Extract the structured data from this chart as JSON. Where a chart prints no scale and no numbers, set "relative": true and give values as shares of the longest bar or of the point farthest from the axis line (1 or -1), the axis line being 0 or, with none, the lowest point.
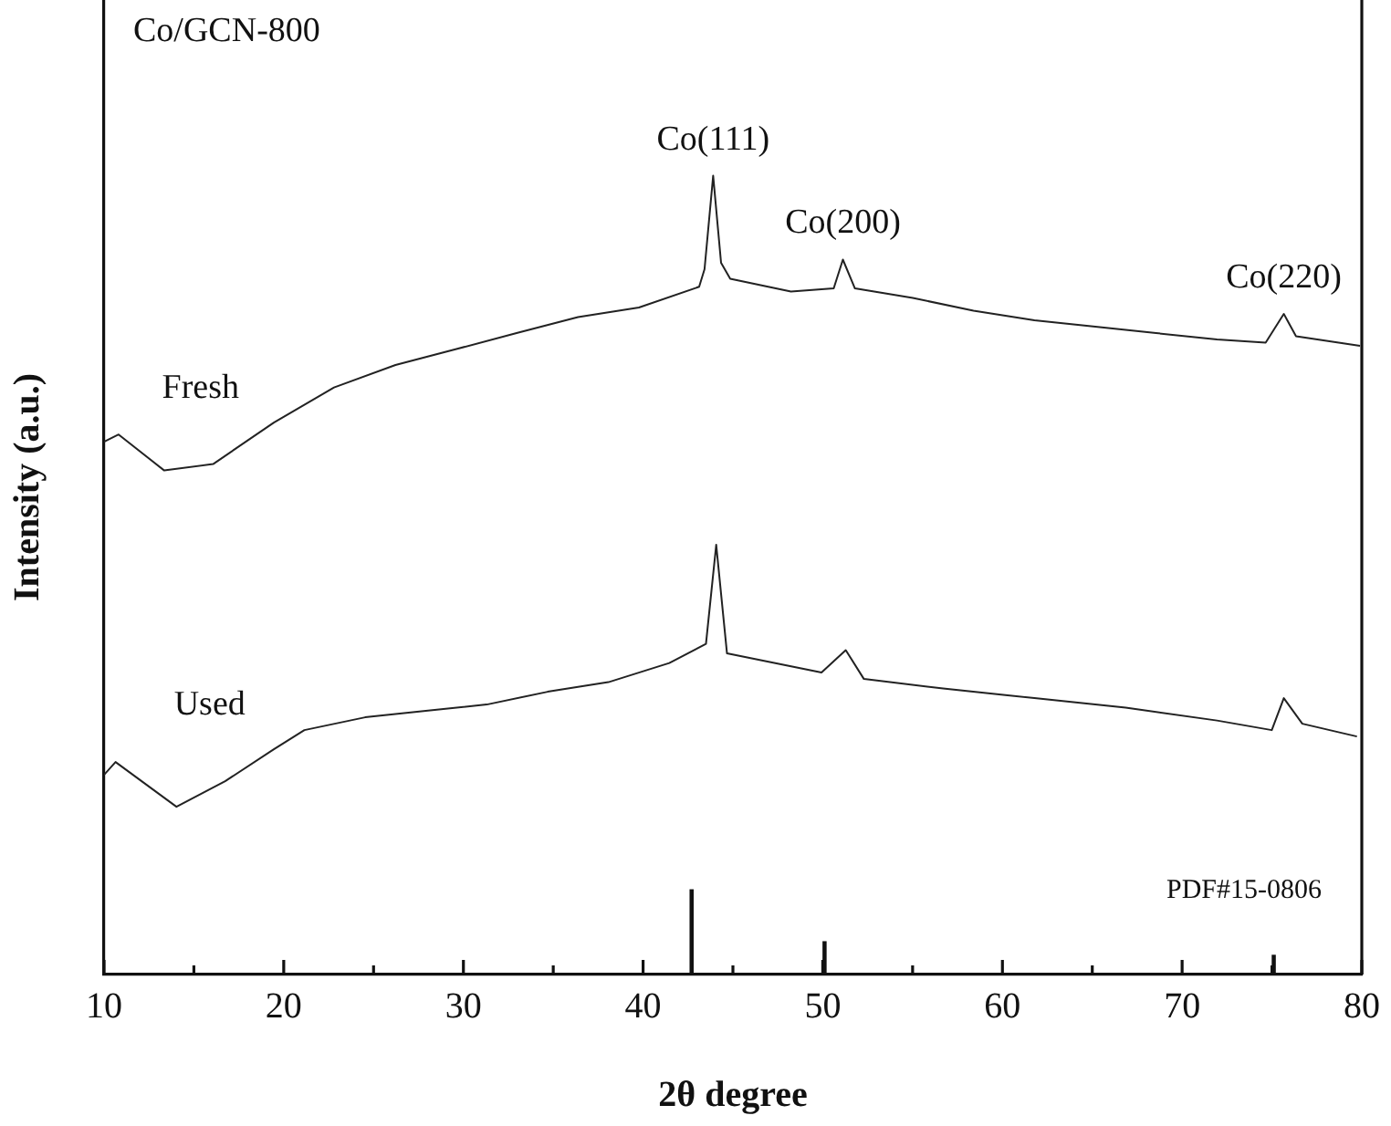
{
  "chart_data": {
    "type": "line",
    "relative": true,
    "xlabel": "2θ degree",
    "ylabel": "Intensity (a.u.)",
    "xlim": [
      10,
      80
    ],
    "xticks": [
      10,
      {
        "value": 15,
        "label": null
      },
      20,
      {
        "value": 25,
        "label": null
      },
      30,
      {
        "value": 35,
        "label": null
      },
      40,
      {
        "value": 45,
        "label": null
      },
      50,
      {
        "value": 55,
        "label": null
      },
      60,
      {
        "value": 65,
        "label": null
      },
      70,
      {
        "value": 75,
        "label": null
      },
      80
    ],
    "grid": false,
    "legend": false,
    "marker": "none",
    "line_style": "solid",
    "annotations": [
      "Co/GCN-800",
      {
        "text": "Co(111)",
        "x": 43.9,
        "y": 1
      },
      {
        "text": "Co(200)",
        "x": 51.12,
        "y": 0.895
      },
      {
        "text": "Co(220)",
        "x": 75.66,
        "y": 0.827
      }
    ],
    "series": [
      {
        "name": "Fresh",
        "color": "#222222",
        "x": [
          10.0,
          10.81,
          13.35,
          16.07,
          19.45,
          22.8,
          26.22,
          29.61,
          32.96,
          36.38,
          39.77,
          43.12,
          43.42,
          43.9,
          44.34,
          44.85,
          48.23,
          50.61,
          51.12,
          51.79,
          55.01,
          58.39,
          61.78,
          65.17,
          68.55,
          71.94,
          74.65,
          75.66,
          76.34,
          79.9
        ],
        "values": [
          0.667,
          0.676,
          0.631,
          0.639,
          0.691,
          0.735,
          0.763,
          0.783,
          0.803,
          0.823,
          0.835,
          0.861,
          0.883,
          1,
          0.891,
          0.871,
          0.855,
          0.859,
          0.895,
          0.859,
          0.847,
          0.831,
          0.819,
          0.811,
          0.803,
          0.795,
          0.791,
          0.827,
          0.799,
          0.787
        ]
      },
      {
        "name": "Used",
        "color": "#222222",
        "x": [
          10.0,
          10.64,
          14.03,
          16.74,
          19.45,
          21.15,
          24.53,
          27.91,
          31.3,
          34.69,
          38.07,
          41.46,
          43.5,
          44.07,
          44.67,
          49.93,
          51.28,
          52.29,
          56.7,
          61.78,
          66.86,
          71.94,
          74.99,
          75.66,
          76.69,
          79.73
        ],
        "values": [
          0.25,
          0.266,
          0.21,
          0.242,
          0.282,
          0.306,
          0.322,
          0.33,
          0.338,
          0.354,
          0.366,
          0.39,
          0.414,
          0.538,
          0.402,
          0.378,
          0.406,
          0.37,
          0.358,
          0.346,
          0.334,
          0.318,
          0.306,
          0.346,
          0.314,
          0.298
        ]
      },
      {
        "name": "PDF#15-0806",
        "type": "bar",
        "color": "#111111",
        "x": [
          42.7,
          50.1,
          75.1
        ],
        "values": [
          0.106,
          0.041,
          0.024
        ]
      }
    ]
  }
}
